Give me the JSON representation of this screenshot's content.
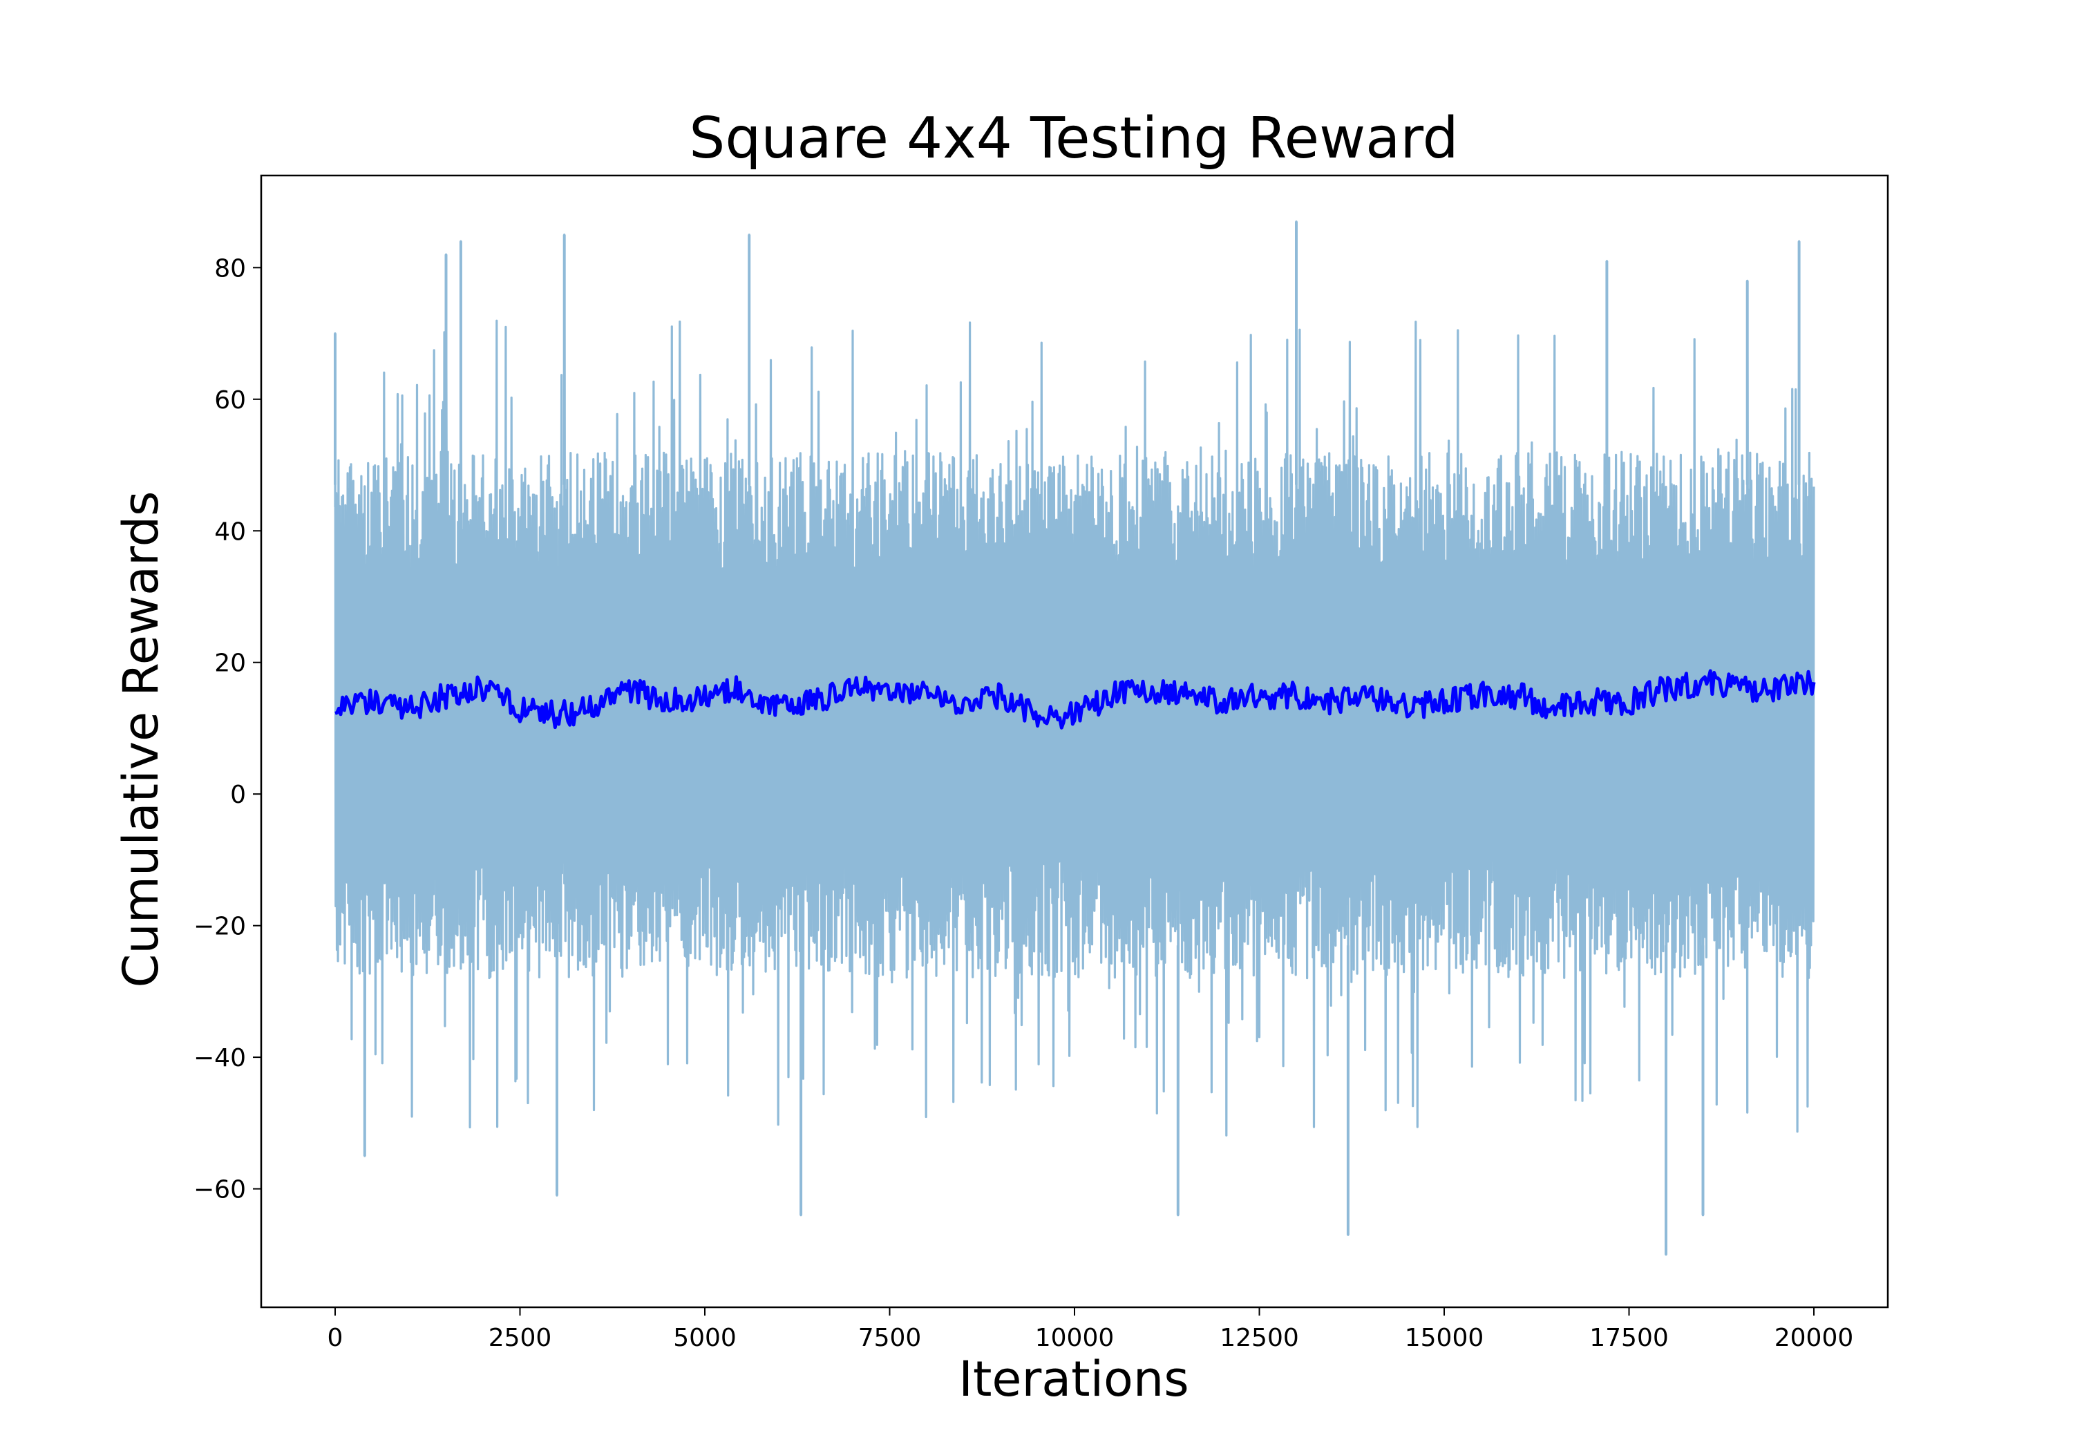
{
  "chart_data": {
    "type": "line",
    "title": "Square 4x4 Testing Reward",
    "xlabel": "Iterations",
    "ylabel": "Cumulative Rewards",
    "xlim": [
      -1000,
      21000
    ],
    "ylim": [
      -78,
      94
    ],
    "xticks": [
      0,
      2500,
      5000,
      7500,
      10000,
      12500,
      15000,
      17500,
      20000
    ],
    "xtick_labels": [
      "0",
      "2500",
      "5000",
      "7500",
      "10000",
      "12500",
      "15000",
      "17500",
      "20000"
    ],
    "yticks": [
      -60,
      -40,
      -20,
      0,
      20,
      40,
      60,
      80
    ],
    "ytick_labels": [
      "−60",
      "−40",
      "−20",
      "0",
      "20",
      "40",
      "60",
      "80"
    ],
    "grid": false,
    "legend": "none",
    "colors": {
      "raw": "#8fbad8",
      "smoothed": "#0000ff"
    },
    "series": [
      {
        "style": "raw episodic reward",
        "color": "#8fbad8",
        "x_range": [
          0,
          20000
        ],
        "typical_band": [
          -28,
          52
        ],
        "notable_maxima": [
          {
            "x": 0,
            "y": 70
          },
          {
            "x": 1500,
            "y": 82
          },
          {
            "x": 1700,
            "y": 84
          },
          {
            "x": 3100,
            "y": 85
          },
          {
            "x": 5600,
            "y": 85
          },
          {
            "x": 13000,
            "y": 87
          },
          {
            "x": 17200,
            "y": 81
          },
          {
            "x": 19100,
            "y": 78
          },
          {
            "x": 19800,
            "y": 84
          }
        ],
        "notable_minima": [
          {
            "x": 400,
            "y": -55
          },
          {
            "x": 3000,
            "y": -61
          },
          {
            "x": 6300,
            "y": -64
          },
          {
            "x": 11400,
            "y": -64
          },
          {
            "x": 13700,
            "y": -67
          },
          {
            "x": 18000,
            "y": -70
          },
          {
            "x": 18500,
            "y": -64
          }
        ]
      },
      {
        "style": "moving average",
        "color": "#0000ff",
        "x": [
          0,
          500,
          1000,
          1500,
          2000,
          2500,
          3000,
          3500,
          4000,
          4500,
          5000,
          5500,
          6000,
          6500,
          7000,
          7500,
          8000,
          8500,
          9000,
          9500,
          10000,
          10500,
          11000,
          11500,
          12000,
          12500,
          13000,
          13500,
          14000,
          14500,
          15000,
          15500,
          16000,
          16500,
          17000,
          17500,
          18000,
          18500,
          19000,
          19500,
          20000
        ],
        "y": [
          14,
          14,
          13,
          15,
          16,
          13,
          12,
          13,
          16,
          14,
          15,
          16,
          13,
          14,
          16,
          16,
          15,
          14,
          15,
          12,
          12,
          15,
          16,
          15,
          14,
          15,
          15,
          14,
          15,
          13,
          14,
          15,
          15,
          13,
          14,
          14,
          16,
          17,
          16,
          16,
          17
        ]
      }
    ]
  }
}
